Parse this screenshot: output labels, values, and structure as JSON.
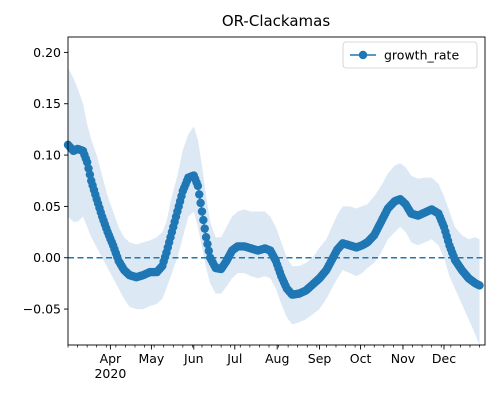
{
  "chart_data": {
    "type": "line",
    "title": "OR-Clackamas",
    "xlabel": "",
    "ylabel": "",
    "ylim": [
      -0.085,
      0.215
    ],
    "x_range": [
      "2020-03-01",
      "2020-12-31"
    ],
    "y_ticks": [
      "0.20",
      "0.15",
      "0.10",
      "0.05",
      "0.00",
      "−0.05"
    ],
    "x_tick_labels": [
      {
        "label": "Apr",
        "sub": "2020",
        "date": "2020-04-01"
      },
      {
        "label": "May",
        "sub": "",
        "date": "2020-05-01"
      },
      {
        "label": "Jun",
        "sub": "",
        "date": "2020-06-01"
      },
      {
        "label": "Jul",
        "sub": "",
        "date": "2020-07-01"
      },
      {
        "label": "Aug",
        "sub": "",
        "date": "2020-08-01"
      },
      {
        "label": "Sep",
        "sub": "",
        "date": "2020-09-01"
      },
      {
        "label": "Oct",
        "sub": "",
        "date": "2020-10-01"
      },
      {
        "label": "Nov",
        "sub": "",
        "date": "2020-11-01"
      },
      {
        "label": "Dec",
        "sub": "",
        "date": "2020-12-01"
      }
    ],
    "reference_line": {
      "y": 0.0,
      "style": "dashed",
      "color": "#1f77b4"
    },
    "legend": {
      "position": "top-right",
      "entries": [
        "growth_rate"
      ]
    },
    "grid": false,
    "series": [
      {
        "name": "growth_rate",
        "color": "#1f77b4",
        "band_color": "#dce9f5",
        "points": [
          {
            "x": "2020-03-01",
            "y": 0.11,
            "lo": 0.04,
            "hi": 0.185
          },
          {
            "x": "2020-03-05",
            "y": 0.104,
            "lo": 0.035,
            "hi": 0.175
          },
          {
            "x": "2020-03-08",
            "y": 0.106,
            "lo": 0.035,
            "hi": 0.165
          },
          {
            "x": "2020-03-12",
            "y": 0.104,
            "lo": 0.04,
            "hi": 0.15
          },
          {
            "x": "2020-03-15",
            "y": 0.093,
            "lo": 0.03,
            "hi": 0.13
          },
          {
            "x": "2020-03-18",
            "y": 0.075,
            "lo": 0.02,
            "hi": 0.115
          },
          {
            "x": "2020-03-22",
            "y": 0.057,
            "lo": 0.01,
            "hi": 0.1
          },
          {
            "x": "2020-03-26",
            "y": 0.04,
            "lo": 0.0,
            "hi": 0.08
          },
          {
            "x": "2020-03-30",
            "y": 0.025,
            "lo": -0.01,
            "hi": 0.06
          },
          {
            "x": "2020-04-03",
            "y": 0.012,
            "lo": -0.02,
            "hi": 0.045
          },
          {
            "x": "2020-04-07",
            "y": -0.003,
            "lo": -0.03,
            "hi": 0.03
          },
          {
            "x": "2020-04-11",
            "y": -0.012,
            "lo": -0.04,
            "hi": 0.02
          },
          {
            "x": "2020-04-15",
            "y": -0.017,
            "lo": -0.048,
            "hi": 0.015
          },
          {
            "x": "2020-04-20",
            "y": -0.019,
            "lo": -0.05,
            "hi": 0.013
          },
          {
            "x": "2020-04-25",
            "y": -0.017,
            "lo": -0.05,
            "hi": 0.015
          },
          {
            "x": "2020-04-30",
            "y": -0.014,
            "lo": -0.047,
            "hi": 0.017
          },
          {
            "x": "2020-05-05",
            "y": -0.014,
            "lo": -0.045,
            "hi": 0.02
          },
          {
            "x": "2020-05-09",
            "y": -0.008,
            "lo": -0.04,
            "hi": 0.025
          },
          {
            "x": "2020-05-12",
            "y": 0.005,
            "lo": -0.03,
            "hi": 0.035
          },
          {
            "x": "2020-05-16",
            "y": 0.025,
            "lo": -0.015,
            "hi": 0.06
          },
          {
            "x": "2020-05-20",
            "y": 0.045,
            "lo": 0.0,
            "hi": 0.08
          },
          {
            "x": "2020-05-24",
            "y": 0.065,
            "lo": 0.02,
            "hi": 0.105
          },
          {
            "x": "2020-05-28",
            "y": 0.078,
            "lo": 0.04,
            "hi": 0.12
          },
          {
            "x": "2020-06-01",
            "y": 0.08,
            "lo": 0.045,
            "hi": 0.128
          },
          {
            "x": "2020-06-04",
            "y": 0.07,
            "lo": 0.03,
            "hi": 0.115
          },
          {
            "x": "2020-06-07",
            "y": 0.045,
            "lo": 0.01,
            "hi": 0.09
          },
          {
            "x": "2020-06-10",
            "y": 0.02,
            "lo": -0.01,
            "hi": 0.06
          },
          {
            "x": "2020-06-13",
            "y": 0.0,
            "lo": -0.025,
            "hi": 0.035
          },
          {
            "x": "2020-06-17",
            "y": -0.01,
            "lo": -0.035,
            "hi": 0.02
          },
          {
            "x": "2020-06-21",
            "y": -0.011,
            "lo": -0.035,
            "hi": 0.02
          },
          {
            "x": "2020-06-25",
            "y": -0.003,
            "lo": -0.028,
            "hi": 0.03
          },
          {
            "x": "2020-06-29",
            "y": 0.007,
            "lo": -0.02,
            "hi": 0.04
          },
          {
            "x": "2020-07-03",
            "y": 0.011,
            "lo": -0.015,
            "hi": 0.045
          },
          {
            "x": "2020-07-08",
            "y": 0.011,
            "lo": -0.015,
            "hi": 0.047
          },
          {
            "x": "2020-07-13",
            "y": 0.009,
            "lo": -0.018,
            "hi": 0.045
          },
          {
            "x": "2020-07-18",
            "y": 0.007,
            "lo": -0.02,
            "hi": 0.045
          },
          {
            "x": "2020-07-23",
            "y": 0.009,
            "lo": -0.018,
            "hi": 0.045
          },
          {
            "x": "2020-07-27",
            "y": 0.007,
            "lo": -0.02,
            "hi": 0.04
          },
          {
            "x": "2020-07-31",
            "y": -0.003,
            "lo": -0.03,
            "hi": 0.03
          },
          {
            "x": "2020-08-04",
            "y": -0.018,
            "lo": -0.045,
            "hi": 0.015
          },
          {
            "x": "2020-08-08",
            "y": -0.03,
            "lo": -0.058,
            "hi": 0.0
          },
          {
            "x": "2020-08-12",
            "y": -0.036,
            "lo": -0.065,
            "hi": -0.008
          },
          {
            "x": "2020-08-17",
            "y": -0.035,
            "lo": -0.063,
            "hi": -0.008
          },
          {
            "x": "2020-08-22",
            "y": -0.032,
            "lo": -0.06,
            "hi": -0.005
          },
          {
            "x": "2020-08-27",
            "y": -0.026,
            "lo": -0.055,
            "hi": 0.0
          },
          {
            "x": "2020-09-01",
            "y": -0.02,
            "lo": -0.05,
            "hi": 0.01
          },
          {
            "x": "2020-09-06",
            "y": -0.012,
            "lo": -0.04,
            "hi": 0.018
          },
          {
            "x": "2020-09-10",
            "y": -0.002,
            "lo": -0.03,
            "hi": 0.03
          },
          {
            "x": "2020-09-14",
            "y": 0.008,
            "lo": -0.02,
            "hi": 0.042
          },
          {
            "x": "2020-09-18",
            "y": 0.014,
            "lo": -0.012,
            "hi": 0.05
          },
          {
            "x": "2020-09-23",
            "y": 0.012,
            "lo": -0.015,
            "hi": 0.05
          },
          {
            "x": "2020-09-28",
            "y": 0.01,
            "lo": -0.018,
            "hi": 0.048
          },
          {
            "x": "2020-10-02",
            "y": 0.012,
            "lo": -0.015,
            "hi": 0.05
          },
          {
            "x": "2020-10-06",
            "y": 0.015,
            "lo": -0.01,
            "hi": 0.052
          },
          {
            "x": "2020-10-11",
            "y": 0.022,
            "lo": -0.005,
            "hi": 0.06
          },
          {
            "x": "2020-10-16",
            "y": 0.035,
            "lo": 0.005,
            "hi": 0.07
          },
          {
            "x": "2020-10-21",
            "y": 0.048,
            "lo": 0.018,
            "hi": 0.082
          },
          {
            "x": "2020-10-26",
            "y": 0.055,
            "lo": 0.025,
            "hi": 0.09
          },
          {
            "x": "2020-10-30",
            "y": 0.057,
            "lo": 0.03,
            "hi": 0.092
          },
          {
            "x": "2020-11-03",
            "y": 0.052,
            "lo": 0.025,
            "hi": 0.088
          },
          {
            "x": "2020-11-07",
            "y": 0.043,
            "lo": 0.015,
            "hi": 0.08
          },
          {
            "x": "2020-11-12",
            "y": 0.041,
            "lo": 0.012,
            "hi": 0.077
          },
          {
            "x": "2020-11-17",
            "y": 0.044,
            "lo": 0.015,
            "hi": 0.078
          },
          {
            "x": "2020-11-22",
            "y": 0.047,
            "lo": 0.018,
            "hi": 0.078
          },
          {
            "x": "2020-11-27",
            "y": 0.043,
            "lo": 0.012,
            "hi": 0.072
          },
          {
            "x": "2020-12-01",
            "y": 0.03,
            "lo": 0.0,
            "hi": 0.06
          },
          {
            "x": "2020-12-05",
            "y": 0.012,
            "lo": -0.018,
            "hi": 0.045
          },
          {
            "x": "2020-12-09",
            "y": -0.002,
            "lo": -0.03,
            "hi": 0.03
          },
          {
            "x": "2020-12-14",
            "y": -0.012,
            "lo": -0.045,
            "hi": 0.022
          },
          {
            "x": "2020-12-19",
            "y": -0.02,
            "lo": -0.06,
            "hi": 0.018
          },
          {
            "x": "2020-12-24",
            "y": -0.025,
            "lo": -0.075,
            "hi": 0.02
          },
          {
            "x": "2020-12-27",
            "y": -0.027,
            "lo": -0.085,
            "hi": 0.018
          }
        ]
      }
    ]
  }
}
